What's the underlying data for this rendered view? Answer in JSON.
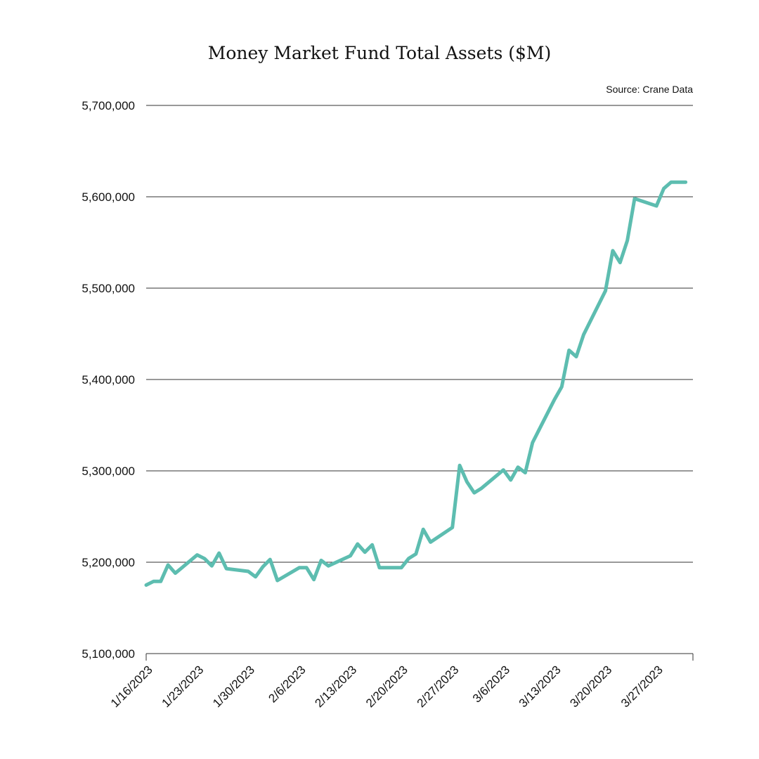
{
  "chart_data": {
    "type": "line",
    "title": "Money Market Fund Total Assets ($M)",
    "source": "Source: Crane Data",
    "xlabel": "",
    "ylabel": "",
    "ylim": [
      5100000,
      5700000
    ],
    "yticks": [
      5100000,
      5200000,
      5300000,
      5400000,
      5500000,
      5600000,
      5700000
    ],
    "ytick_labels": [
      "5,100,000",
      "5,200,000",
      "5,300,000",
      "5,400,000",
      "5,500,000",
      "5,600,000",
      "5,700,000"
    ],
    "xlim": [
      "1/16/2023",
      "4/1/2023"
    ],
    "xticks": [
      "1/16/2023",
      "1/23/2023",
      "1/30/2023",
      "2/6/2023",
      "2/13/2023",
      "2/20/2023",
      "2/27/2023",
      "3/6/2023",
      "3/13/2023",
      "3/20/2023",
      "3/27/2023"
    ],
    "grid": true,
    "line_color": "#5dbdb0",
    "series": [
      {
        "x": [
          "1/16/2023",
          "1/17/2023",
          "1/18/2023",
          "1/19/2023",
          "1/20/2023",
          "1/23/2023",
          "1/24/2023",
          "1/25/2023",
          "1/26/2023",
          "1/27/2023",
          "1/30/2023",
          "1/31/2023",
          "2/1/2023",
          "2/2/2023",
          "2/3/2023",
          "2/6/2023",
          "2/7/2023",
          "2/8/2023",
          "2/9/2023",
          "2/10/2023",
          "2/13/2023",
          "2/14/2023",
          "2/15/2023",
          "2/16/2023",
          "2/17/2023",
          "2/20/2023",
          "2/21/2023",
          "2/22/2023",
          "2/23/2023",
          "2/24/2023",
          "2/27/2023",
          "2/28/2023",
          "3/1/2023",
          "3/2/2023",
          "3/3/2023",
          "3/6/2023",
          "3/7/2023",
          "3/8/2023",
          "3/9/2023",
          "3/10/2023",
          "3/13/2023",
          "3/14/2023",
          "3/15/2023",
          "3/16/2023",
          "3/17/2023",
          "3/20/2023",
          "3/21/2023",
          "3/22/2023",
          "3/23/2023",
          "3/24/2023",
          "3/27/2023",
          "3/28/2023",
          "3/29/2023",
          "3/30/2023",
          "3/31/2023"
        ],
        "values": [
          5175000,
          5179000,
          5179000,
          5197000,
          5188000,
          5208000,
          5204000,
          5196000,
          5210000,
          5193000,
          5190000,
          5184000,
          5195000,
          5203000,
          5180000,
          5194000,
          5194000,
          5181000,
          5202000,
          5196000,
          5207000,
          5220000,
          5211000,
          5219000,
          5194000,
          5194000,
          5204000,
          5209000,
          5236000,
          5222000,
          5238000,
          5306000,
          5288000,
          5276000,
          5281000,
          5301000,
          5290000,
          5304000,
          5298000,
          5331000,
          5378000,
          5392000,
          5432000,
          5425000,
          5449000,
          5497000,
          5541000,
          5528000,
          5552000,
          5598000,
          5590000,
          5609000,
          5616000,
          5616000,
          5616000
        ]
      }
    ]
  }
}
